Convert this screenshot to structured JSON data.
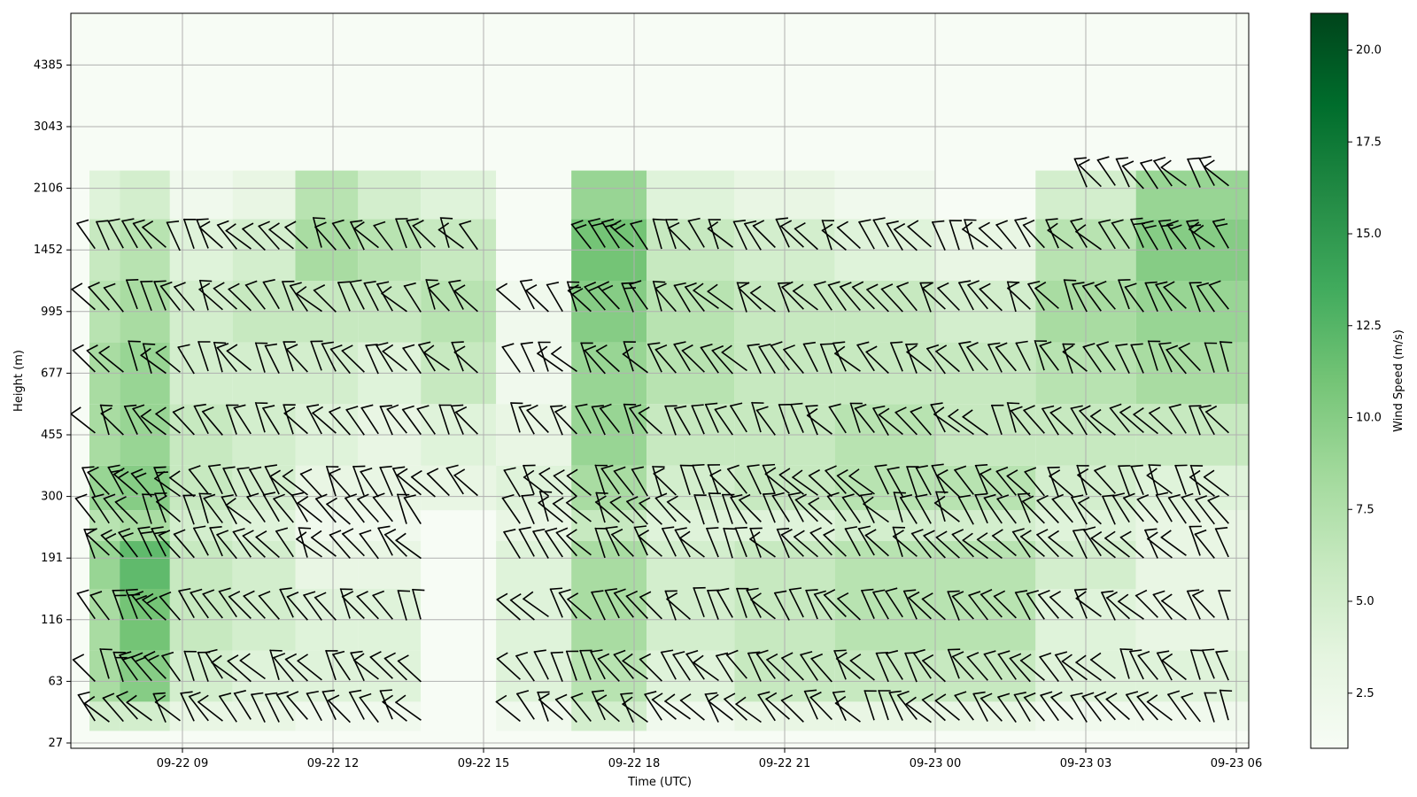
{
  "chart_data": {
    "type": "heatmap",
    "subtype": "wind-barbs-over-speed-field",
    "title": "",
    "xlabel": "Time (UTC)",
    "ylabel": "Height (m)",
    "colorbar_label": "Wind Speed (m/s)",
    "colormap": "Greens",
    "colorbar_range": [
      1.0,
      21.0
    ],
    "colorbar_ticks": [
      "2.5",
      "5.0",
      "7.5",
      "10.0",
      "12.5",
      "15.0",
      "17.5",
      "20.0"
    ],
    "x_tick_labels": [
      "09-22 09",
      "09-22 12",
      "09-22 15",
      "09-22 18",
      "09-22 21",
      "09-23 00",
      "09-23 03",
      "09-23 06"
    ],
    "x_range_hours_utc": [
      "09-22 06:48",
      "09-23 06:15"
    ],
    "y_tick_labels": [
      "27",
      "63",
      "116",
      "191",
      "300",
      "455",
      "677",
      "995",
      "1452",
      "2106",
      "3043",
      "4385"
    ],
    "grid": true,
    "height_levels_m": [
      36,
      63,
      116,
      191,
      245,
      300,
      455,
      677,
      995,
      1452,
      2106
    ],
    "time_blocks": [
      {
        "time": "09-22 07:30",
        "speed_m_s": [
          5,
          8,
          8,
          9,
          7,
          9,
          8,
          8,
          7,
          6,
          4
        ]
      },
      {
        "time": "09-22 08:00",
        "speed_m_s": [
          5,
          10,
          11,
          12,
          8,
          10,
          9,
          9,
          8,
          7,
          5
        ]
      },
      {
        "time": "09-22 09:30",
        "speed_m_s": [
          3,
          5,
          6,
          6,
          5,
          6,
          6,
          5,
          5,
          4,
          2
        ]
      },
      {
        "time": "09-22 10:30",
        "speed_m_s": [
          3,
          4,
          5,
          5,
          4,
          5,
          5,
          5,
          6,
          5,
          3
        ]
      },
      {
        "time": "09-22 12:00",
        "speed_m_s": [
          2,
          4,
          4,
          3,
          2,
          3,
          4,
          5,
          6,
          8,
          7
        ]
      },
      {
        "time": "09-22 13:00",
        "speed_m_s": [
          2,
          4,
          4,
          3,
          2,
          3,
          3,
          4,
          6,
          7,
          5
        ]
      },
      {
        "time": "09-22 14:30",
        "speed_m_s": [
          1,
          1,
          1,
          1,
          1,
          3,
          4,
          6,
          7,
          6,
          4
        ]
      },
      {
        "time": "09-22 16:00",
        "speed_m_s": [
          2,
          4,
          4,
          4,
          3,
          4,
          3,
          2,
          2,
          1,
          1
        ]
      },
      {
        "time": "09-22 17:30",
        "speed_m_s": [
          5,
          7,
          8,
          8,
          6,
          8,
          9,
          9,
          10,
          11,
          9
        ]
      },
      {
        "time": "09-22 19:00",
        "speed_m_s": [
          2,
          4,
          5,
          5,
          4,
          5,
          6,
          7,
          7,
          6,
          4
        ]
      },
      {
        "time": "09-22 21:00",
        "speed_m_s": [
          3,
          6,
          6,
          6,
          4,
          6,
          6,
          6,
          6,
          5,
          3
        ]
      },
      {
        "time": "09-22 23:00",
        "speed_m_s": [
          3,
          6,
          7,
          7,
          5,
          7,
          7,
          6,
          6,
          4,
          2
        ]
      },
      {
        "time": "09-23 01:00",
        "speed_m_s": [
          3,
          6,
          7,
          7,
          5,
          7,
          6,
          6,
          5,
          3,
          1
        ]
      },
      {
        "time": "09-23 03:00",
        "speed_m_s": [
          2,
          4,
          4,
          5,
          4,
          5,
          6,
          7,
          8,
          7,
          5
        ]
      },
      {
        "time": "09-23 05:00",
        "speed_m_s": [
          2,
          4,
          3,
          3,
          3,
          4,
          6,
          8,
          9,
          10,
          9
        ]
      }
    ]
  }
}
